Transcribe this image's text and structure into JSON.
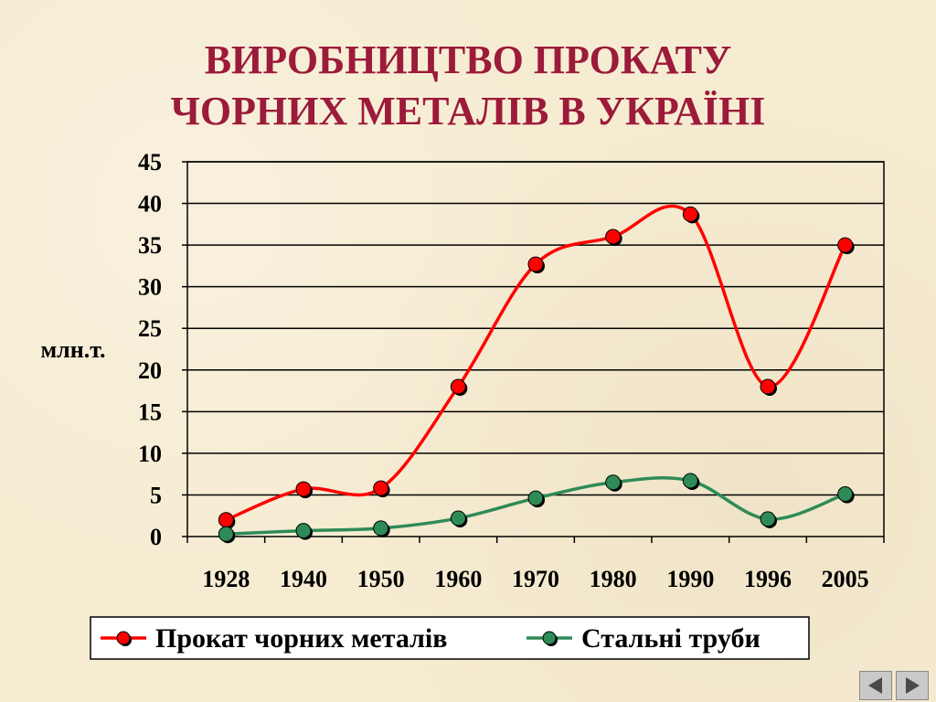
{
  "slide": {
    "title_line1": "ВИРОБНИЦТВО ПРОКАТУ",
    "title_line2": "ЧОРНИХ МЕТАЛІВ В УКРАЇНІ"
  },
  "navigation": {
    "prev_icon": "triangle-left-icon",
    "next_icon": "triangle-right-icon"
  },
  "chart_data": {
    "type": "line",
    "title": "ВИРОБНИЦТВО ПРОКАТУ ЧОРНИХ МЕТАЛІВ В УКРАЇНІ",
    "xlabel": "",
    "ylabel": "млн.т.",
    "categories": [
      "1928",
      "1940",
      "1950",
      "1960",
      "1970",
      "1980",
      "1990",
      "1996",
      "2005"
    ],
    "ylim": [
      0,
      45
    ],
    "yticks": [
      0,
      5,
      10,
      15,
      20,
      25,
      30,
      35,
      40,
      45
    ],
    "grid": true,
    "legend_position": "bottom",
    "series": [
      {
        "name": "Прокат чорних металів",
        "color": "#ff0000",
        "values": [
          2,
          5.7,
          5.8,
          18,
          32.7,
          36,
          38.7,
          18,
          35
        ]
      },
      {
        "name": "Стальні труби",
        "color": "#2e8b57",
        "values": [
          0.3,
          0.7,
          1,
          2.2,
          4.6,
          6.5,
          6.7,
          2.1,
          5.1
        ]
      }
    ]
  }
}
